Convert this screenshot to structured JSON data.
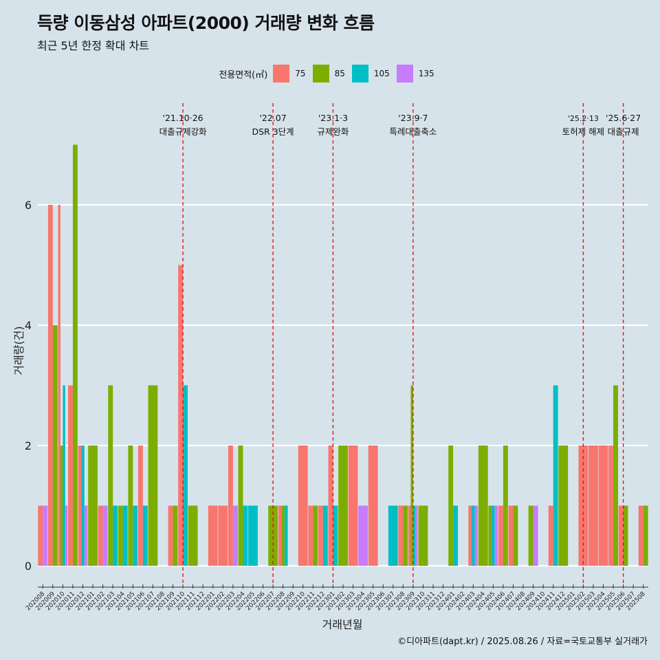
{
  "title": "득량 이동삼성 아파트(2000) 거래량 변화 흐름",
  "subtitle": "최근 5년 한정 확대 차트",
  "caption": "©디아파트(dapt.kr) / 2025.08.26 / 자료=국토교통부 실거래가",
  "legend": {
    "title": "전용면적(㎡)",
    "items": [
      {
        "label": "75",
        "color": "#f8766d"
      },
      {
        "label": "85",
        "color": "#7cae00"
      },
      {
        "label": "105",
        "color": "#00bfc4"
      },
      {
        "label": "135",
        "color": "#c77cff"
      }
    ]
  },
  "chart_data": {
    "type": "bar",
    "xlabel": "거래년월",
    "ylabel": "거래량(건)",
    "ylim": [
      -0.35,
      7.5
    ],
    "yticks": [
      0,
      2,
      4,
      6
    ],
    "grid": true,
    "categories": [
      "202008",
      "202009",
      "202010",
      "202011",
      "202012",
      "202101",
      "202102",
      "202103",
      "202104",
      "202105",
      "202106",
      "202107",
      "202108",
      "202109",
      "202110",
      "202111",
      "202112",
      "202201",
      "202202",
      "202203",
      "202204",
      "202205",
      "202206",
      "202207",
      "202208",
      "202209",
      "202210",
      "202211",
      "202212",
      "202301",
      "202302",
      "202303",
      "202304",
      "202305",
      "202306",
      "202307",
      "202308",
      "202309",
      "202310",
      "202311",
      "202312",
      "202401",
      "202402",
      "202403",
      "202404",
      "202405",
      "202406",
      "202407",
      "202408",
      "202409",
      "202410",
      "202411",
      "202412",
      "202501",
      "202502",
      "202503",
      "202504",
      "202505",
      "202506",
      "202507",
      "202508"
    ],
    "series": [
      {
        "name": "75",
        "values": [
          1,
          6,
          6,
          3,
          2,
          0,
          1,
          0,
          0,
          0,
          2,
          0,
          0,
          1,
          5,
          0,
          0,
          1,
          1,
          2,
          0,
          0,
          0,
          0,
          1,
          0,
          2,
          1,
          1,
          2,
          0,
          2,
          0,
          2,
          0,
          0,
          1,
          1,
          0,
          0,
          0,
          0,
          0,
          1,
          0,
          0,
          1,
          1,
          0,
          0,
          0,
          1,
          0,
          0,
          2,
          2,
          2,
          2,
          1,
          0,
          1
        ]
      },
      {
        "name": "85",
        "values": [
          0,
          4,
          2,
          7,
          0,
          2,
          0,
          3,
          1,
          2,
          0,
          3,
          0,
          1,
          0,
          1,
          0,
          0,
          0,
          0,
          2,
          0,
          0,
          1,
          1,
          0,
          0,
          1,
          0,
          0,
          2,
          0,
          0,
          0,
          0,
          0,
          1,
          3,
          1,
          0,
          0,
          2,
          0,
          0,
          2,
          1,
          2,
          1,
          0,
          1,
          0,
          0,
          2,
          0,
          0,
          0,
          0,
          3,
          1,
          0,
          1
        ]
      },
      {
        "name": "105",
        "values": [
          0,
          0,
          3,
          0,
          2,
          0,
          0,
          1,
          1,
          1,
          1,
          0,
          0,
          0,
          3,
          0,
          0,
          0,
          0,
          0,
          1,
          1,
          0,
          0,
          1,
          0,
          0,
          0,
          1,
          1,
          0,
          0,
          0,
          0,
          0,
          1,
          0,
          1,
          0,
          0,
          0,
          1,
          0,
          1,
          0,
          1,
          0,
          0,
          0,
          0,
          0,
          3,
          0,
          0,
          0,
          0,
          0,
          0,
          0,
          0,
          0
        ]
      },
      {
        "name": "135",
        "values": [
          1,
          0,
          1,
          0,
          1,
          0,
          1,
          0,
          0,
          0,
          0,
          0,
          0,
          0,
          0,
          0,
          0,
          0,
          0,
          1,
          0,
          0,
          0,
          0,
          0,
          0,
          0,
          0,
          0,
          0,
          0,
          0,
          1,
          0,
          0,
          0,
          0,
          1,
          0,
          0,
          0,
          0,
          0,
          1,
          0,
          1,
          0,
          0,
          0,
          1,
          0,
          0,
          0,
          0,
          0,
          0,
          0,
          0,
          0,
          0,
          0
        ]
      }
    ],
    "annotations": [
      {
        "at": "202110",
        "date": "'21.10·26",
        "label": "대출규제강화"
      },
      {
        "at": "202207",
        "date": "'22.07",
        "label": "DSR 3단계"
      },
      {
        "at": "202301",
        "date": "'23.1·3",
        "label": "규제완화"
      },
      {
        "at": "202309",
        "date": "'23.9·7",
        "label": "특례대출축소"
      },
      {
        "at": "202502",
        "date": "'25.2·13",
        "label": "토허제 해제"
      },
      {
        "at": "202506",
        "date": "'25.6·27",
        "label": "대출규제"
      }
    ]
  }
}
